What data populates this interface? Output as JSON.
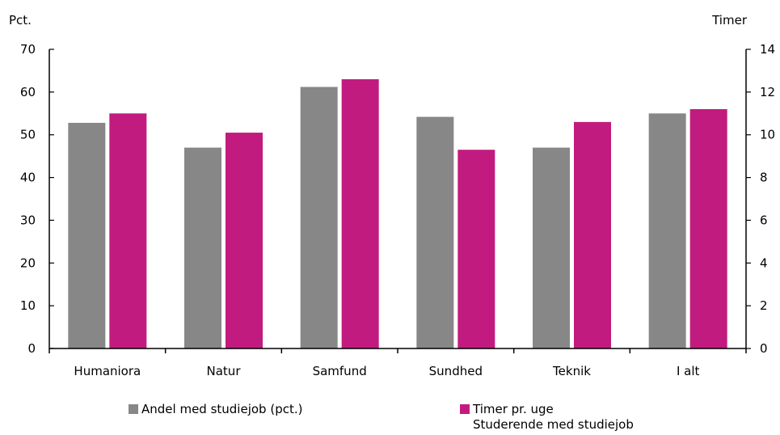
{
  "chart_data": {
    "type": "bar",
    "title": "",
    "left_axis_unit": "Pct.",
    "right_axis_unit": "Timer",
    "categories": [
      "Humaniora",
      "Natur",
      "Samfund",
      "Sundhed",
      "Teknik",
      "I alt"
    ],
    "ylim_left": [
      0,
      70
    ],
    "yticks_left": [
      0,
      10,
      20,
      30,
      40,
      50,
      60,
      70
    ],
    "ylim_right": [
      0,
      14
    ],
    "yticks_right": [
      0,
      2,
      4,
      6,
      8,
      10,
      12,
      14
    ],
    "grid": false,
    "legend_position": "bottom",
    "series": [
      {
        "name": "Andel med studiejob (pct.)",
        "axis": "left",
        "color": "#878787",
        "values": [
          52.8,
          47.0,
          61.2,
          54.2,
          47.0,
          55.0
        ]
      },
      {
        "name": "Timer pr. uge",
        "name_line2": "Studerende med studiejob",
        "axis": "right",
        "color": "#c21b7f",
        "values": [
          11.0,
          10.1,
          12.6,
          9.3,
          10.6,
          11.2
        ]
      }
    ]
  }
}
